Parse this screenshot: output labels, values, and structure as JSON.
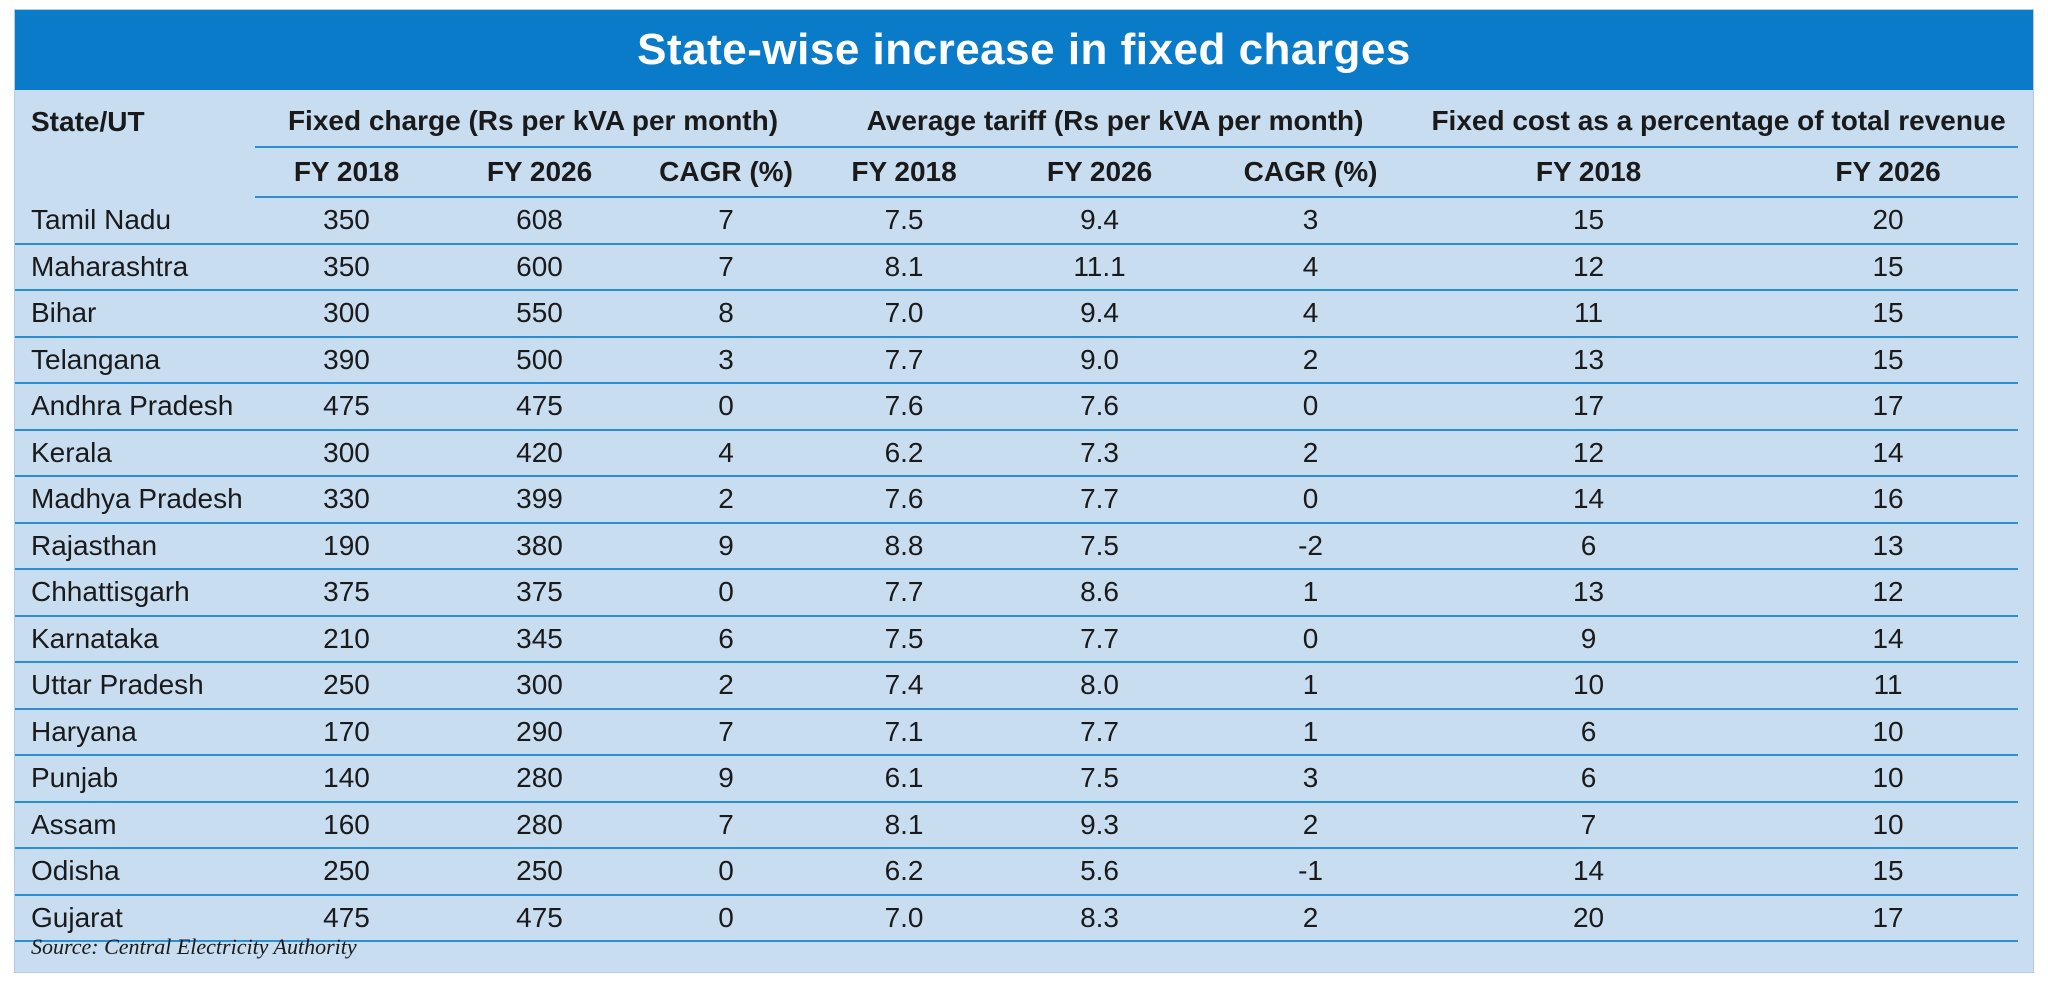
{
  "title": "State-wise increase in fixed charges",
  "columns": {
    "state": "State/UT",
    "group1": "Fixed charge (Rs per kVA per month)",
    "group2": "Average tariff (Rs per kVA per month)",
    "group3": "Fixed cost as a percentage of total revenue",
    "fy2018": "FY 2018",
    "fy2026": "FY 2026",
    "cagr": "CAGR (%)"
  },
  "rows": [
    [
      "Tamil Nadu",
      "350",
      "608",
      "7",
      "7.5",
      "9.4",
      "3",
      "15",
      "20"
    ],
    [
      "Maharashtra",
      "350",
      "600",
      "7",
      "8.1",
      "11.1",
      "4",
      "12",
      "15"
    ],
    [
      "Bihar",
      "300",
      "550",
      "8",
      "7.0",
      "9.4",
      "4",
      "11",
      "15"
    ],
    [
      "Telangana",
      "390",
      "500",
      "3",
      "7.7",
      "9.0",
      "2",
      "13",
      "15"
    ],
    [
      "Andhra Pradesh",
      "475",
      "475",
      "0",
      "7.6",
      "7.6",
      "0",
      "17",
      "17"
    ],
    [
      "Kerala",
      "300",
      "420",
      "4",
      "6.2",
      "7.3",
      "2",
      "12",
      "14"
    ],
    [
      "Madhya Pradesh",
      "330",
      "399",
      "2",
      "7.6",
      "7.7",
      "0",
      "14",
      "16"
    ],
    [
      "Rajasthan",
      "190",
      "380",
      "9",
      "8.8",
      "7.5",
      "-2",
      "6",
      "13"
    ],
    [
      "Chhattisgarh",
      "375",
      "375",
      "0",
      "7.7",
      "8.6",
      "1",
      "13",
      "12"
    ],
    [
      "Karnataka",
      "210",
      "345",
      "6",
      "7.5",
      "7.7",
      "0",
      "9",
      "14"
    ],
    [
      "Uttar Pradesh",
      "250",
      "300",
      "2",
      "7.4",
      "8.0",
      "1",
      "10",
      "11"
    ],
    [
      "Haryana",
      "170",
      "290",
      "7",
      "7.1",
      "7.7",
      "1",
      "6",
      "10"
    ],
    [
      "Punjab",
      "140",
      "280",
      "9",
      "6.1",
      "7.5",
      "3",
      "6",
      "10"
    ],
    [
      "Assam",
      "160",
      "280",
      "7",
      "8.1",
      "9.3",
      "2",
      "7",
      "10"
    ],
    [
      "Odisha",
      "250",
      "250",
      "0",
      "6.2",
      "5.6",
      "-1",
      "14",
      "15"
    ],
    [
      "Gujarat",
      "475",
      "475",
      "0",
      "7.0",
      "8.3",
      "2",
      "20",
      "17"
    ]
  ],
  "source": "Source: Central Electricity Authority",
  "colors": {
    "title_bg": "#0a7bc9",
    "panel_bg": "#c9ddf1",
    "rule": "#2b8fd6"
  }
}
